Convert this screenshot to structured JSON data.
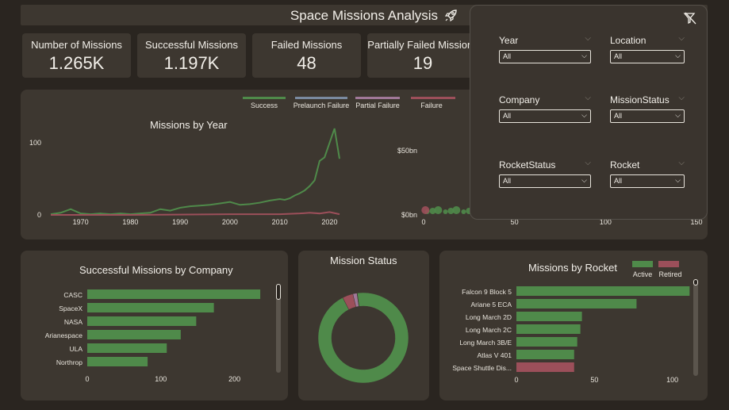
{
  "header": {
    "title": "Space Missions Analysis",
    "icon": "rocket-icon"
  },
  "kpis": [
    {
      "label": "Number of Missions",
      "value": "1.265K"
    },
    {
      "label": "Successful Missions",
      "value": "1.197K"
    },
    {
      "label": "Failed Missions",
      "value": "48"
    },
    {
      "label": "Partially Failed Missions",
      "value": "19"
    }
  ],
  "colors": {
    "success": "#4f8a4a",
    "prelaunch": "#7a8aa0",
    "partial": "#a07898",
    "failure": "#9c4f5a",
    "active": "#4f8a4a",
    "retired": "#9c4f5a"
  },
  "legend_top": [
    "Success",
    "Prelaunch Failure",
    "Partial Failure",
    "Failure"
  ],
  "slicers": [
    {
      "name": "Year",
      "value": "All"
    },
    {
      "name": "Location",
      "value": "All"
    },
    {
      "name": "Company",
      "value": "All"
    },
    {
      "name": "MissionStatus",
      "value": "All"
    },
    {
      "name": "RocketStatus",
      "value": "All"
    },
    {
      "name": "Rocket",
      "value": "All"
    }
  ],
  "chart_data": [
    {
      "type": "line",
      "title": "Missions by Year",
      "xlim": [
        1964,
        2022
      ],
      "ylim": [
        0,
        130
      ],
      "xticks": [
        "1970",
        "1980",
        "1990",
        "2000",
        "2010",
        "2020"
      ],
      "yticks": [
        "100",
        "0"
      ],
      "series": [
        {
          "name": "Success",
          "x": [
            1964,
            1966,
            1968,
            1970,
            1972,
            1974,
            1976,
            1978,
            1980,
            1982,
            1984,
            1986,
            1988,
            1990,
            1992,
            1994,
            1996,
            1998,
            2000,
            2002,
            2004,
            2006,
            2008,
            2010,
            2011,
            2012,
            2013,
            2014,
            2015,
            2016,
            2017,
            2018,
            2019,
            2020,
            2021,
            2022
          ],
          "y": [
            1,
            3,
            8,
            2,
            1,
            2,
            1,
            2,
            1,
            2,
            3,
            8,
            6,
            10,
            12,
            13,
            14,
            16,
            18,
            14,
            15,
            17,
            20,
            22,
            21,
            23,
            27,
            30,
            34,
            40,
            48,
            75,
            80,
            100,
            120,
            78
          ]
        },
        {
          "name": "Failure",
          "x": [
            1964,
            1980,
            2000,
            2010,
            2014,
            2016,
            2018,
            2020,
            2022
          ],
          "y": [
            0,
            0,
            1,
            1,
            2,
            3,
            2,
            4,
            1
          ]
        }
      ]
    },
    {
      "type": "scatter",
      "title": "",
      "xlim": [
        0,
        150
      ],
      "yticks": [
        "$50bn",
        "$0bn"
      ],
      "xticks": [
        "0",
        "50",
        "100",
        "150"
      ],
      "points": [
        2,
        5,
        8,
        12,
        15,
        18,
        22,
        25,
        28,
        31,
        35,
        38,
        42,
        45,
        48,
        52,
        55
      ]
    },
    {
      "type": "bar",
      "title": "Successful Missions by Company",
      "categories": [
        "CASC",
        "SpaceX",
        "NASA",
        "Arianespace",
        "ULA",
        "Northrop"
      ],
      "values": [
        235,
        172,
        148,
        127,
        108,
        82
      ],
      "xlim": [
        0,
        250
      ],
      "xticks": [
        "0",
        "100",
        "200"
      ]
    },
    {
      "type": "pie",
      "title": "Mission Status",
      "labels": [
        "Success",
        "Failure",
        "Partial Failure",
        "Prelaunch Failure"
      ],
      "values": [
        1197,
        48,
        19,
        1
      ]
    },
    {
      "type": "bar",
      "title": "Missions by Rocket",
      "legend": [
        "Active",
        "Retired"
      ],
      "categories": [
        "Falcon 9 Block 5",
        "Ariane 5 ECA",
        "Long March 2D",
        "Long March 2C",
        "Long March 3B/E",
        "Atlas V 401",
        "Space Shuttle Dis..."
      ],
      "values": [
        111,
        77,
        42,
        41,
        39,
        37,
        37
      ],
      "status": [
        "Active",
        "Active",
        "Active",
        "Active",
        "Active",
        "Active",
        "Retired"
      ],
      "xlim": [
        0,
        120
      ],
      "xticks": [
        "0",
        "50",
        "100"
      ]
    }
  ]
}
